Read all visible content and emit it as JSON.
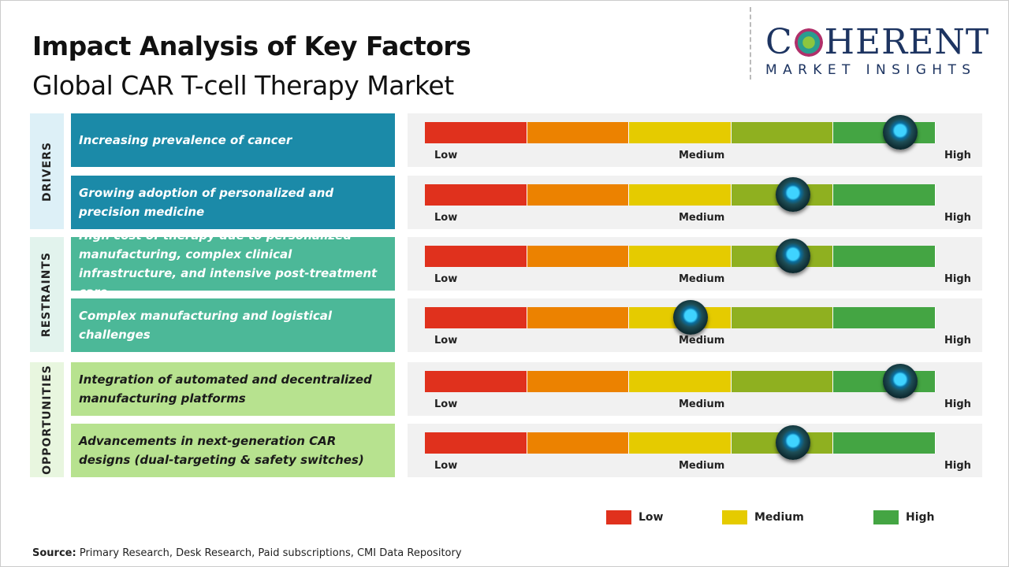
{
  "title": "Impact Analysis of Key Factors",
  "subtitle": "Global CAR T-cell Therapy Market",
  "logo": {
    "main": "COHERENT",
    "sub": "MARKET INSIGHTS"
  },
  "scale": {
    "low": "Low",
    "medium": "Medium",
    "high": "High"
  },
  "colors": {
    "segments": [
      "#e0311d",
      "#ec8200",
      "#e5cb00",
      "#8fb020",
      "#44a543"
    ],
    "drivers_label_bg": "#ddf0f7",
    "drivers_box": "#1b8aa8",
    "restraints_label_bg": "#e2f3ed",
    "restraints_box": "#4cb898",
    "opportunities_label_bg": "#e8f6df",
    "opportunities_box": "#b7e28f"
  },
  "chart_data": {
    "type": "gauge",
    "scale_range": [
      0,
      1
    ],
    "groups": [
      {
        "category": "DRIVERS",
        "factors": [
          {
            "label": "Increasing prevalence of cancer",
            "impact": 0.93
          },
          {
            "label": "Growing adoption of personalized and precision medicine",
            "impact": 0.72
          }
        ]
      },
      {
        "category": "RESTRAINTS",
        "factors": [
          {
            "label": "High cost of therapy due to personalized manufacturing, complex clinical infrastructure, and intensive post-treatment care",
            "impact": 0.72
          },
          {
            "label": "Complex manufacturing and logistical challenges",
            "impact": 0.52
          }
        ]
      },
      {
        "category": "OPPORTUNITIES",
        "factors": [
          {
            "label": "Integration of automated and decentralized manufacturing platforms",
            "impact": 0.93
          },
          {
            "label": "Advancements in next-generation CAR designs (dual-targeting & safety switches)",
            "impact": 0.72
          }
        ]
      }
    ],
    "legend": [
      {
        "label": "Low",
        "color": "#e0311d"
      },
      {
        "label": "Medium",
        "color": "#e5cb00"
      },
      {
        "label": "High",
        "color": "#44a543"
      }
    ]
  },
  "source": {
    "label": "Source:",
    "text": "Primary Research, Desk Research, Paid subscriptions, CMI Data Repository"
  }
}
